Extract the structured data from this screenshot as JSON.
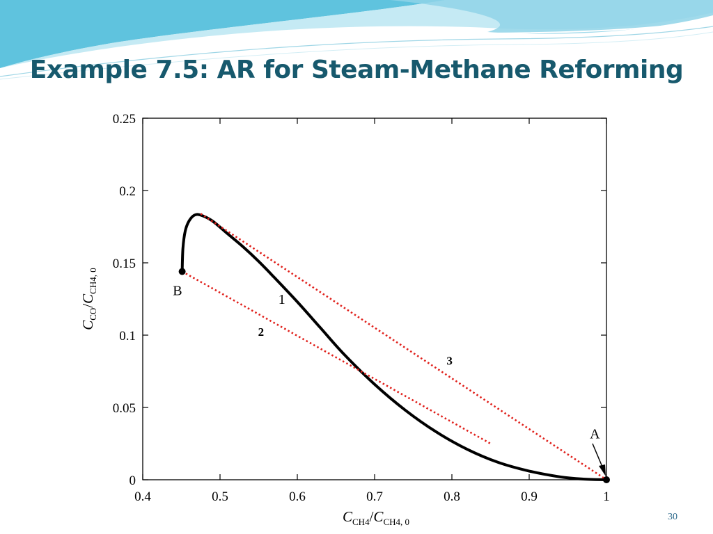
{
  "slide": {
    "title": "Example 7.5: AR for Steam-Methane Reforming",
    "page_number": "30",
    "accent_colors": {
      "wave_dark": "#5fc3de",
      "wave_light": "#bfe8f3",
      "title": "#17596d",
      "reference_lines": "#e0201b"
    }
  },
  "chart_data": {
    "type": "line",
    "xlabel": {
      "base": "C",
      "sub": "CH4",
      "slash": "/",
      "base2": "C",
      "sub2": "CH4, 0"
    },
    "ylabel": {
      "base": "C",
      "sub": "CO",
      "slash": "/",
      "base2": "C",
      "sub2": "CH4, 0"
    },
    "xlim": [
      0.4,
      1.0
    ],
    "ylim": [
      0,
      0.25
    ],
    "x_ticks": [
      "0.4",
      "0.5",
      "0.6",
      "0.7",
      "0.8",
      "0.9",
      "1"
    ],
    "y_ticks": [
      "0",
      "0.05",
      "0.1",
      "0.15",
      "0.2",
      "0.25"
    ],
    "x_tick_values": [
      0.4,
      0.5,
      0.6,
      0.7,
      0.8,
      0.9,
      1.0
    ],
    "y_tick_values": [
      0,
      0.05,
      0.1,
      0.15,
      0.2,
      0.25
    ],
    "grid": false,
    "series": [
      {
        "name": "1",
        "style": "solid",
        "color": "#000000",
        "x": [
          0.451,
          0.452,
          0.455,
          0.46,
          0.467,
          0.475,
          0.49,
          0.51,
          0.53,
          0.55,
          0.57,
          0.6,
          0.63,
          0.66,
          0.7,
          0.74,
          0.78,
          0.82,
          0.86,
          0.9,
          0.94,
          0.97,
          1.0
        ],
        "y": [
          0.144,
          0.16,
          0.172,
          0.179,
          0.183,
          0.183,
          0.179,
          0.17,
          0.161,
          0.151,
          0.14,
          0.123,
          0.105,
          0.087,
          0.066,
          0.048,
          0.033,
          0.021,
          0.012,
          0.006,
          0.002,
          0.0005,
          0.0
        ]
      },
      {
        "name": "2",
        "style": "dotted",
        "color": "#e0201b",
        "x": [
          0.451,
          0.85
        ],
        "y": [
          0.144,
          0.025
        ]
      },
      {
        "name": "3",
        "style": "dotted",
        "color": "#e0201b",
        "x": [
          0.475,
          1.0
        ],
        "y": [
          0.184,
          0.0
        ]
      }
    ],
    "points": [
      {
        "label": "A",
        "x": 1.0,
        "y": 0.0
      },
      {
        "label": "B",
        "x": 0.451,
        "y": 0.144
      }
    ],
    "annotations": [
      {
        "text": "1",
        "x": 0.58,
        "y": 0.125
      },
      {
        "text": "2",
        "x": 0.553,
        "y": 0.103
      },
      {
        "text": "3",
        "x": 0.797,
        "y": 0.083
      },
      {
        "text": "A",
        "x": 0.985,
        "y": 0.032
      },
      {
        "text": "B",
        "x": 0.445,
        "y": 0.131
      }
    ]
  }
}
